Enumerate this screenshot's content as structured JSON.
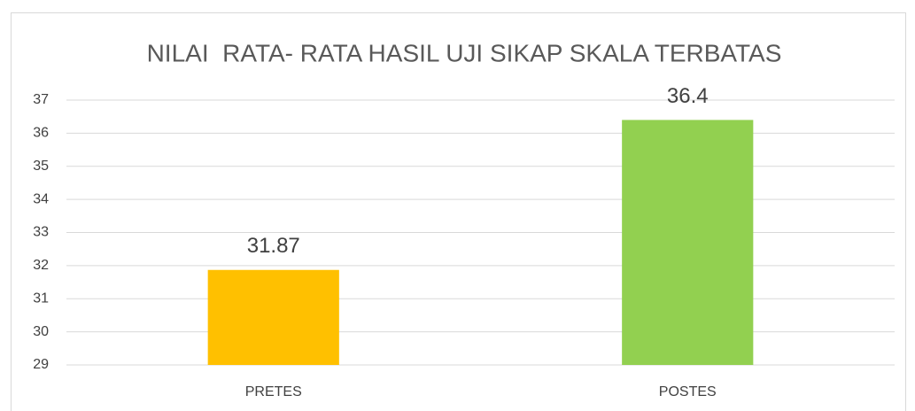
{
  "chart_data": {
    "type": "bar",
    "title": "NILAI  RATA- RATA HASIL UJI SIKAP SKALA TERBATAS",
    "categories": [
      "PRETES",
      "POSTES"
    ],
    "values": [
      31.87,
      36.4
    ],
    "colors": [
      "#ffc000",
      "#92d050"
    ],
    "ylim": [
      29,
      37
    ],
    "yticks": [
      29,
      30,
      31,
      32,
      33,
      34,
      35,
      36,
      37
    ],
    "grid": true,
    "data_labels": true
  }
}
